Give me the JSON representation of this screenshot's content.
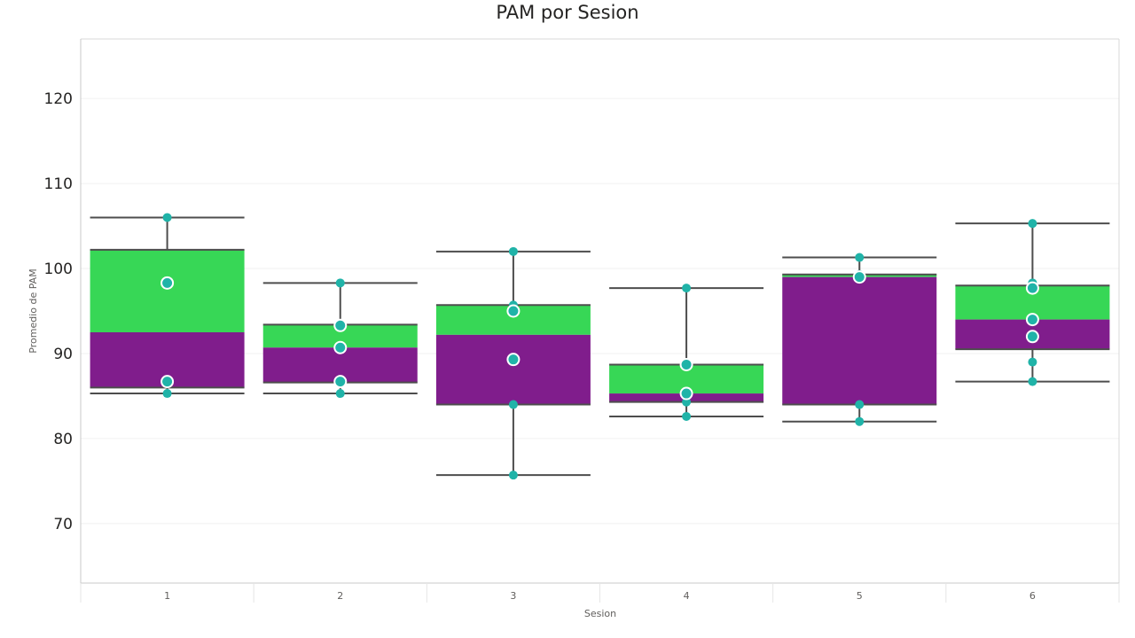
{
  "chart_data": {
    "type": "box",
    "title": "PAM por Sesion",
    "xlabel": "Sesion",
    "ylabel": "Promedio de PAM",
    "categories": [
      "1",
      "2",
      "3",
      "4",
      "5",
      "6"
    ],
    "yticks": [
      70,
      80,
      90,
      100,
      110,
      120
    ],
    "ylim": [
      63,
      127
    ],
    "grid": true,
    "colors": {
      "upper_box": "#37d756",
      "lower_box": "#801d8c",
      "point": "#20b3a8",
      "point_outline": "#ffffff",
      "whisker": "#4d4d4d"
    },
    "boxes": [
      {
        "category": "1",
        "min": 85.3,
        "q1": 86.0,
        "median": 92.5,
        "q3": 102.2,
        "max": 106.0
      },
      {
        "category": "2",
        "min": 85.3,
        "q1": 86.6,
        "median": 90.7,
        "q3": 93.4,
        "max": 98.3
      },
      {
        "category": "3",
        "min": 75.7,
        "q1": 84.0,
        "median": 92.2,
        "q3": 95.7,
        "max": 102.0
      },
      {
        "category": "4",
        "min": 82.6,
        "q1": 84.3,
        "median": 85.3,
        "q3": 88.7,
        "max": 97.7
      },
      {
        "category": "5",
        "min": 82.0,
        "q1": 84.0,
        "median": 99.0,
        "q3": 99.3,
        "max": 101.3
      },
      {
        "category": "6",
        "min": 86.7,
        "q1": 90.5,
        "median": 94.0,
        "q3": 98.0,
        "max": 105.3
      }
    ],
    "points": [
      {
        "category": "1",
        "values": [
          106.0,
          85.3
        ]
      },
      {
        "category": "2",
        "values": [
          98.3,
          85.3
        ]
      },
      {
        "category": "3",
        "values": [
          102.0,
          95.7,
          84.0,
          75.7
        ]
      },
      {
        "category": "4",
        "values": [
          97.7,
          84.3,
          82.6
        ]
      },
      {
        "category": "5",
        "values": [
          101.3,
          99.3,
          84.0,
          82.0
        ]
      },
      {
        "category": "6",
        "values": [
          105.3,
          98.3,
          89.0,
          86.7
        ]
      }
    ],
    "highlight_points": [
      {
        "category": "1",
        "values": [
          98.3,
          86.7
        ]
      },
      {
        "category": "2",
        "values": [
          93.3,
          90.7,
          86.7
        ]
      },
      {
        "category": "3",
        "values": [
          95.0,
          89.3
        ]
      },
      {
        "category": "4",
        "values": [
          88.7,
          85.3
        ]
      },
      {
        "category": "5",
        "values": [
          99.0
        ]
      },
      {
        "category": "6",
        "values": [
          97.7,
          94.0,
          92.0
        ]
      }
    ]
  }
}
